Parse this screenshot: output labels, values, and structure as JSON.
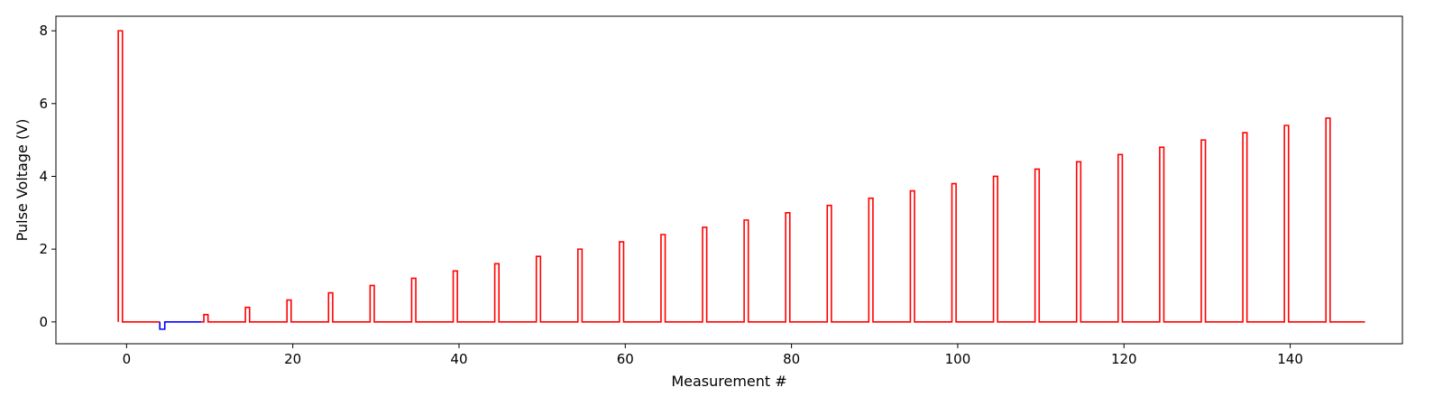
{
  "chart_data": {
    "type": "line",
    "title": "",
    "xlabel": "Measurement #",
    "ylabel": "Pulse Voltage (V)",
    "xlim": [
      -8.5,
      153.5
    ],
    "ylim": [
      -0.6,
      8.4
    ],
    "xticks": [
      0,
      20,
      40,
      60,
      80,
      100,
      120,
      140
    ],
    "yticks": [
      0,
      2,
      4,
      6,
      8
    ],
    "grid": false,
    "line_style": "step",
    "series": [
      {
        "color": "#ff0000",
        "points": [
          [
            -1,
            0
          ],
          [
            -1,
            8
          ],
          [
            -0.5,
            8
          ],
          [
            -0.5,
            0
          ],
          [
            4,
            0
          ]
        ]
      },
      {
        "color": "#0000ff",
        "points": [
          [
            4,
            0
          ],
          [
            4,
            -0.2
          ],
          [
            4.6,
            -0.2
          ],
          [
            4.6,
            0
          ],
          [
            9,
            0
          ]
        ]
      },
      {
        "color": "#ff0000",
        "points": [
          [
            9,
            0
          ],
          [
            9.3,
            0
          ],
          [
            9.3,
            0.2
          ],
          [
            9.8,
            0.2
          ],
          [
            9.8,
            0
          ],
          [
            14.3,
            0
          ],
          [
            14.3,
            0.4
          ],
          [
            14.8,
            0.4
          ],
          [
            14.8,
            0
          ],
          [
            19.3,
            0
          ],
          [
            19.3,
            0.6
          ],
          [
            19.8,
            0.6
          ],
          [
            19.8,
            0
          ],
          [
            24.3,
            0
          ],
          [
            24.3,
            0.8
          ],
          [
            24.8,
            0.8
          ],
          [
            24.8,
            0
          ],
          [
            29.3,
            0
          ],
          [
            29.3,
            1.0
          ],
          [
            29.8,
            1.0
          ],
          [
            29.8,
            0
          ],
          [
            34.3,
            0
          ],
          [
            34.3,
            1.2
          ],
          [
            34.8,
            1.2
          ],
          [
            34.8,
            0
          ],
          [
            39.3,
            0
          ],
          [
            39.3,
            1.4
          ],
          [
            39.8,
            1.4
          ],
          [
            39.8,
            0
          ],
          [
            44.3,
            0
          ],
          [
            44.3,
            1.6
          ],
          [
            44.8,
            1.6
          ],
          [
            44.8,
            0
          ],
          [
            49.3,
            0
          ],
          [
            49.3,
            1.8
          ],
          [
            49.8,
            1.8
          ],
          [
            49.8,
            0
          ],
          [
            54.3,
            0
          ],
          [
            54.3,
            2.0
          ],
          [
            54.8,
            2.0
          ],
          [
            54.8,
            0
          ],
          [
            59.3,
            0
          ],
          [
            59.3,
            2.2
          ],
          [
            59.8,
            2.2
          ],
          [
            59.8,
            0
          ],
          [
            64.3,
            0
          ],
          [
            64.3,
            2.4
          ],
          [
            64.8,
            2.4
          ],
          [
            64.8,
            0
          ],
          [
            69.3,
            0
          ],
          [
            69.3,
            2.6
          ],
          [
            69.8,
            2.6
          ],
          [
            69.8,
            0
          ],
          [
            74.3,
            0
          ],
          [
            74.3,
            2.8
          ],
          [
            74.8,
            2.8
          ],
          [
            74.8,
            0
          ],
          [
            79.3,
            0
          ],
          [
            79.3,
            3.0
          ],
          [
            79.8,
            3.0
          ],
          [
            79.8,
            0
          ],
          [
            84.3,
            0
          ],
          [
            84.3,
            3.2
          ],
          [
            84.8,
            3.2
          ],
          [
            84.8,
            0
          ],
          [
            89.3,
            0
          ],
          [
            89.3,
            3.4
          ],
          [
            89.8,
            3.4
          ],
          [
            89.8,
            0
          ],
          [
            94.3,
            0
          ],
          [
            94.3,
            3.6
          ],
          [
            94.8,
            3.6
          ],
          [
            94.8,
            0
          ],
          [
            99.3,
            0
          ],
          [
            99.3,
            3.8
          ],
          [
            99.8,
            3.8
          ],
          [
            99.8,
            0
          ],
          [
            104.3,
            0
          ],
          [
            104.3,
            4.0
          ],
          [
            104.8,
            4.0
          ],
          [
            104.8,
            0
          ],
          [
            109.3,
            0
          ],
          [
            109.3,
            4.2
          ],
          [
            109.8,
            4.2
          ],
          [
            109.8,
            0
          ],
          [
            114.3,
            0
          ],
          [
            114.3,
            4.4
          ],
          [
            114.8,
            4.4
          ],
          [
            114.8,
            0
          ],
          [
            119.3,
            0
          ],
          [
            119.3,
            4.6
          ],
          [
            119.8,
            4.6
          ],
          [
            119.8,
            0
          ],
          [
            124.3,
            0
          ],
          [
            124.3,
            4.8
          ],
          [
            124.8,
            4.8
          ],
          [
            124.8,
            0
          ],
          [
            129.3,
            0
          ],
          [
            129.3,
            5.0
          ],
          [
            129.8,
            5.0
          ],
          [
            129.8,
            0
          ],
          [
            134.3,
            0
          ],
          [
            134.3,
            5.2
          ],
          [
            134.8,
            5.2
          ],
          [
            134.8,
            0
          ],
          [
            139.3,
            0
          ],
          [
            139.3,
            5.4
          ],
          [
            139.8,
            5.4
          ],
          [
            139.8,
            0
          ],
          [
            144.3,
            0
          ],
          [
            144.3,
            5.6
          ],
          [
            144.8,
            5.6
          ],
          [
            144.8,
            0
          ],
          [
            149,
            0
          ]
        ]
      }
    ]
  }
}
